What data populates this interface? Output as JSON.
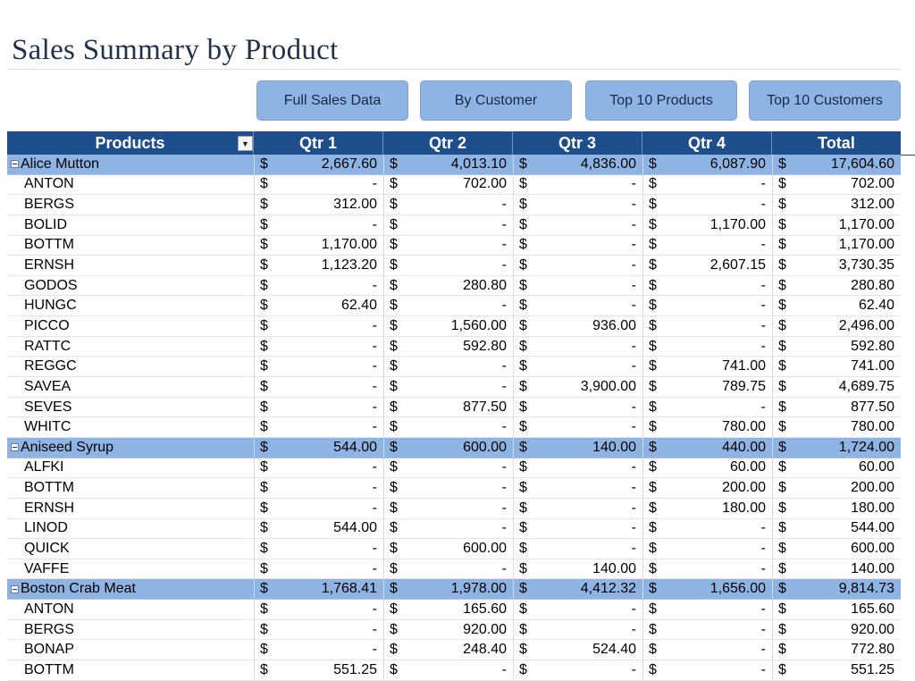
{
  "title": "Sales Summary by Product",
  "buttons": [
    "Full Sales Data",
    "By Customer",
    "Top 10 Products",
    "Top 10 Customers"
  ],
  "table": {
    "headers": [
      "Products",
      "Qtr 1",
      "Qtr 2",
      "Qtr 3",
      "Qtr 4",
      "Total"
    ],
    "currency": "$",
    "rows": [
      {
        "type": "group",
        "label": "Alice Mutton",
        "values": [
          "2,667.60",
          "4,013.10",
          "4,836.00",
          "6,087.90",
          "17,604.60"
        ]
      },
      {
        "type": "item",
        "label": "ANTON",
        "values": [
          "-",
          "702.00",
          "-",
          "-",
          "702.00"
        ]
      },
      {
        "type": "item",
        "label": "BERGS",
        "values": [
          "312.00",
          "-",
          "-",
          "-",
          "312.00"
        ]
      },
      {
        "type": "item",
        "label": "BOLID",
        "values": [
          "-",
          "-",
          "-",
          "1,170.00",
          "1,170.00"
        ]
      },
      {
        "type": "item",
        "label": "BOTTM",
        "values": [
          "1,170.00",
          "-",
          "-",
          "-",
          "1,170.00"
        ]
      },
      {
        "type": "item",
        "label": "ERNSH",
        "values": [
          "1,123.20",
          "-",
          "-",
          "2,607.15",
          "3,730.35"
        ]
      },
      {
        "type": "item",
        "label": "GODOS",
        "values": [
          "-",
          "280.80",
          "-",
          "-",
          "280.80"
        ]
      },
      {
        "type": "item",
        "label": "HUNGC",
        "values": [
          "62.40",
          "-",
          "-",
          "-",
          "62.40"
        ]
      },
      {
        "type": "item",
        "label": "PICCO",
        "values": [
          "-",
          "1,560.00",
          "936.00",
          "-",
          "2,496.00"
        ]
      },
      {
        "type": "item",
        "label": "RATTC",
        "values": [
          "-",
          "592.80",
          "-",
          "-",
          "592.80"
        ]
      },
      {
        "type": "item",
        "label": "REGGC",
        "values": [
          "-",
          "-",
          "-",
          "741.00",
          "741.00"
        ]
      },
      {
        "type": "item",
        "label": "SAVEA",
        "values": [
          "-",
          "-",
          "3,900.00",
          "789.75",
          "4,689.75"
        ]
      },
      {
        "type": "item",
        "label": "SEVES",
        "values": [
          "-",
          "877.50",
          "-",
          "-",
          "877.50"
        ]
      },
      {
        "type": "item",
        "label": "WHITC",
        "values": [
          "-",
          "-",
          "-",
          "780.00",
          "780.00"
        ]
      },
      {
        "type": "group",
        "label": "Aniseed Syrup",
        "values": [
          "544.00",
          "600.00",
          "140.00",
          "440.00",
          "1,724.00"
        ]
      },
      {
        "type": "item",
        "label": "ALFKI",
        "values": [
          "-",
          "-",
          "-",
          "60.00",
          "60.00"
        ]
      },
      {
        "type": "item",
        "label": "BOTTM",
        "values": [
          "-",
          "-",
          "-",
          "200.00",
          "200.00"
        ]
      },
      {
        "type": "item",
        "label": "ERNSH",
        "values": [
          "-",
          "-",
          "-",
          "180.00",
          "180.00"
        ]
      },
      {
        "type": "item",
        "label": "LINOD",
        "values": [
          "544.00",
          "-",
          "-",
          "-",
          "544.00"
        ]
      },
      {
        "type": "item",
        "label": "QUICK",
        "values": [
          "-",
          "600.00",
          "-",
          "-",
          "600.00"
        ]
      },
      {
        "type": "item",
        "label": "VAFFE",
        "values": [
          "-",
          "-",
          "140.00",
          "-",
          "140.00"
        ]
      },
      {
        "type": "group",
        "label": "Boston Crab Meat",
        "values": [
          "1,768.41",
          "1,978.00",
          "4,412.32",
          "1,656.00",
          "9,814.73"
        ]
      },
      {
        "type": "item",
        "label": "ANTON",
        "values": [
          "-",
          "165.60",
          "-",
          "-",
          "165.60"
        ]
      },
      {
        "type": "item",
        "label": "BERGS",
        "values": [
          "-",
          "920.00",
          "-",
          "-",
          "920.00"
        ]
      },
      {
        "type": "item",
        "label": "BONAP",
        "values": [
          "-",
          "248.40",
          "524.40",
          "-",
          "772.80"
        ]
      },
      {
        "type": "item",
        "label": "BOTTM",
        "values": [
          "551.25",
          "-",
          "-",
          "-",
          "551.25"
        ]
      }
    ]
  }
}
